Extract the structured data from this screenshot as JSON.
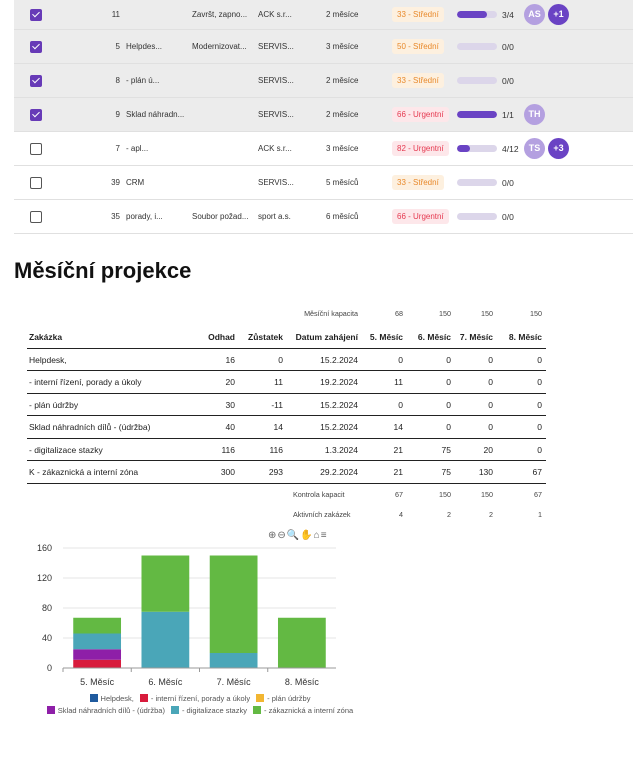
{
  "tasks": [
    {
      "checked": true,
      "num": "11",
      "name": "",
      "desc": "Završt, zapno...",
      "org": "ACK s.r...",
      "len": "2 měsíce",
      "badge": "33 - Střední",
      "level": "str",
      "progress": 0.75,
      "count": "3/4",
      "avatars": [
        "AS",
        "+1"
      ]
    },
    {
      "checked": true,
      "num": "5",
      "name": "Helpdes...",
      "desc": "Modernizovat...",
      "org": "SERVIS...",
      "len": "3 měsíce",
      "badge": "50 - Střední",
      "level": "str",
      "progress": 0,
      "count": "0/0",
      "avatars": []
    },
    {
      "checked": true,
      "num": "8",
      "name": "- plán ú...",
      "desc": "",
      "org": "SERVIS...",
      "len": "2 měsíce",
      "badge": "33 - Střední",
      "level": "str",
      "progress": 0,
      "count": "0/0",
      "avatars": []
    },
    {
      "checked": true,
      "num": "9",
      "name": "Sklad náhradn...",
      "desc": "",
      "org": "SERVIS...",
      "len": "2 měsíce",
      "badge": "66 - Urgentní",
      "level": "urg",
      "progress": 1,
      "count": "1/1",
      "avatars": [
        "TH"
      ]
    },
    {
      "checked": false,
      "num": "7",
      "name": "- apl...",
      "desc": "",
      "org": "ACK s.r...",
      "len": "3 měsíce",
      "badge": "82 - Urgentní",
      "level": "urg",
      "progress": 0.33,
      "count": "4/12",
      "avatars": [
        "TS",
        "+3"
      ]
    },
    {
      "checked": false,
      "num": "39",
      "name": "CRM",
      "desc": "",
      "org": "SERVIS...",
      "len": "5 měsíců",
      "badge": "33 - Střední",
      "level": "str",
      "progress": 0,
      "count": "0/0",
      "avatars": []
    },
    {
      "checked": false,
      "num": "35",
      "name": "porady, i...",
      "desc": "Soubor požad...",
      "org": "sport a.s.",
      "len": "6 měsíců",
      "badge": "66 - Urgentní",
      "level": "urg",
      "progress": 0,
      "count": "0/0",
      "avatars": []
    }
  ],
  "heading": "Měsíční projekce",
  "projection": {
    "capacity_label": "Měsíční kapacita",
    "capacity": [
      "68",
      "150",
      "150",
      "150"
    ],
    "headers": [
      "Zakázka",
      "Odhad",
      "Zůstatek",
      "Datum zahájení",
      "5. Měsíc",
      "6. Měsíc",
      "7. Měsíc",
      "8. Měsíc"
    ],
    "rows": [
      [
        "Helpdesk,",
        "16",
        "0",
        "15.2.2024",
        "0",
        "0",
        "0",
        "0"
      ],
      [
        "- interní řízení, porady a úkoly",
        "20",
        "11",
        "19.2.2024",
        "11",
        "0",
        "0",
        "0"
      ],
      [
        "- plán údržby",
        "30",
        "-11",
        "15.2.2024",
        "0",
        "0",
        "0",
        "0"
      ],
      [
        "Sklad náhradních dílů - (údržba)",
        "40",
        "14",
        "15.2.2024",
        "14",
        "0",
        "0",
        "0"
      ],
      [
        "- digitalizace stazky",
        "116",
        "116",
        "1.3.2024",
        "21",
        "75",
        "20",
        "0"
      ],
      [
        "K - zákaznická a interní zóna",
        "300",
        "293",
        "29.2.2024",
        "21",
        "75",
        "130",
        "67"
      ]
    ],
    "check_label": "Kontrola kapacit",
    "check": [
      "67",
      "150",
      "150",
      "67"
    ],
    "active_label": "Aktivních zakázek",
    "active": [
      "4",
      "2",
      "2",
      "1"
    ]
  },
  "chart_toolbar": "⊕⊖🔍✋⌂≡",
  "chart_data": {
    "type": "bar",
    "stacked": true,
    "categories": [
      "5. Měsíc",
      "6. Měsíc",
      "7. Měsíc",
      "8. Měsíc"
    ],
    "ylim": [
      0,
      160
    ],
    "yticks": [
      0,
      40,
      80,
      120,
      160
    ],
    "series": [
      {
        "name": "Helpdesk,",
        "color": "#1f5a9e",
        "values": [
          0,
          0,
          0,
          0
        ]
      },
      {
        "name": "- interní řízení, porady a úkoly",
        "color": "#d81b3c",
        "values": [
          11,
          0,
          0,
          0
        ]
      },
      {
        "name": "- plán údržby",
        "color": "#f2b632",
        "values": [
          0,
          0,
          0,
          0
        ]
      },
      {
        "name": "Sklad náhradních dílů - (údržba)",
        "color": "#8e1fa8",
        "values": [
          14,
          0,
          0,
          0
        ]
      },
      {
        "name": "- digitalizace stazky",
        "color": "#4aa6b8",
        "values": [
          21,
          75,
          20,
          0
        ]
      },
      {
        "name": "- zákaznická a interní zóna",
        "color": "#63b943",
        "values": [
          21,
          75,
          130,
          67
        ]
      }
    ]
  }
}
